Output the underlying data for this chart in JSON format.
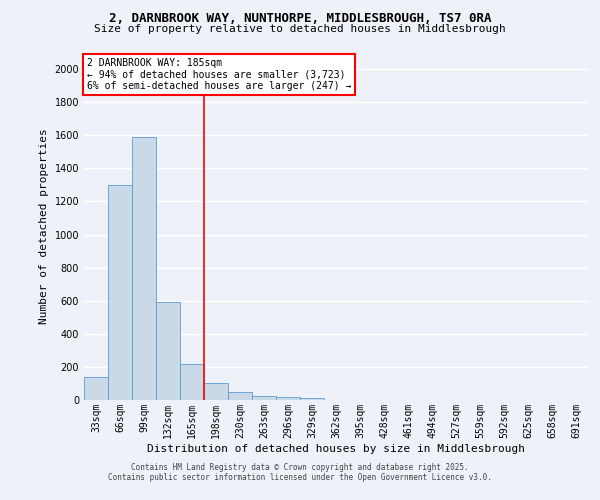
{
  "title_line1": "2, DARNBROOK WAY, NUNTHORPE, MIDDLESBROUGH, TS7 0RA",
  "title_line2": "Size of property relative to detached houses in Middlesbrough",
  "xlabel": "Distribution of detached houses by size in Middlesbrough",
  "ylabel": "Number of detached properties",
  "bin_labels": [
    "33sqm",
    "66sqm",
    "99sqm",
    "132sqm",
    "165sqm",
    "198sqm",
    "230sqm",
    "263sqm",
    "296sqm",
    "329sqm",
    "362sqm",
    "395sqm",
    "428sqm",
    "461sqm",
    "494sqm",
    "527sqm",
    "559sqm",
    "592sqm",
    "625sqm",
    "658sqm",
    "691sqm"
  ],
  "bar_values": [
    140,
    1300,
    1590,
    590,
    215,
    100,
    50,
    25,
    18,
    15,
    0,
    0,
    0,
    0,
    0,
    0,
    0,
    0,
    0,
    0,
    0
  ],
  "bar_color": "#c9d9e8",
  "bar_edge_color": "#5b9bd5",
  "vline_x_index": 4.5,
  "vline_color": "red",
  "annotation_text": "2 DARNBROOK WAY: 185sqm\n← 94% of detached houses are smaller (3,723)\n6% of semi-detached houses are larger (247) →",
  "annotation_box_color": "white",
  "annotation_box_edge": "red",
  "ylim": [
    0,
    2100
  ],
  "yticks": [
    0,
    200,
    400,
    600,
    800,
    1000,
    1200,
    1400,
    1600,
    1800,
    2000
  ],
  "footer_line1": "Contains HM Land Registry data © Crown copyright and database right 2025.",
  "footer_line2": "Contains public sector information licensed under the Open Government Licence v3.0.",
  "bg_color": "#eef2f8",
  "grid_color": "#ffffff",
  "title_fontsize": 9,
  "subtitle_fontsize": 8,
  "ylabel_fontsize": 8,
  "xlabel_fontsize": 8,
  "tick_fontsize": 7,
  "ann_fontsize": 7,
  "footer_fontsize": 5.5
}
